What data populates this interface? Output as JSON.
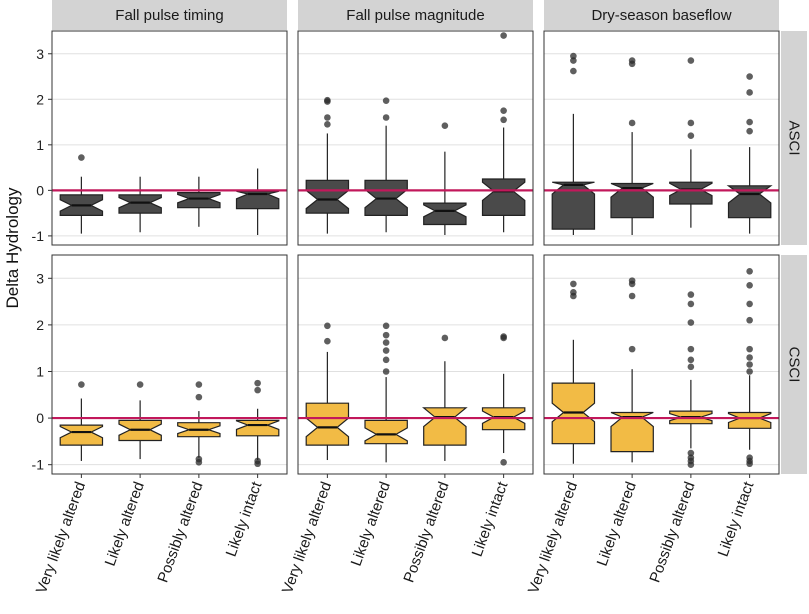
{
  "chart_data": {
    "type": "boxplot",
    "ylabel": "Delta Hydrology",
    "xlabel": "",
    "ylim": [
      -1.2,
      3.5
    ],
    "yticks": [
      -1,
      0,
      1,
      2,
      3
    ],
    "reference_line": 0,
    "columns": [
      "Fall pulse timing",
      "Fall pulse magnitude",
      "Dry-season baseflow"
    ],
    "rows": [
      "ASCI",
      "CSCI"
    ],
    "categories": [
      "Very likely altered",
      "Likely altered",
      "Possibly altered",
      "Likely intact"
    ],
    "colors": {
      "ASCI": "#4a4a4a",
      "CSCI": "#f2bb45",
      "reference_line": "#c2185b",
      "strip_bg": "#d3d3d3",
      "grid": "#e0e0e0"
    },
    "panels": [
      {
        "row": "ASCI",
        "column": "Fall pulse timing",
        "boxes": [
          {
            "category": "Very likely altered",
            "whisker_low": -0.95,
            "q1": -0.55,
            "median": -0.33,
            "q3": -0.1,
            "whisker_high": 0.3,
            "outliers": [
              0.72
            ]
          },
          {
            "category": "Likely altered",
            "whisker_low": -0.92,
            "q1": -0.5,
            "median": -0.27,
            "q3": -0.1,
            "whisker_high": 0.3,
            "outliers": []
          },
          {
            "category": "Possibly altered",
            "whisker_low": -0.8,
            "q1": -0.38,
            "median": -0.18,
            "q3": -0.05,
            "whisker_high": 0.3,
            "outliers": []
          },
          {
            "category": "Likely intact",
            "whisker_low": -0.98,
            "q1": -0.4,
            "median": -0.08,
            "q3": -0.02,
            "whisker_high": 0.48,
            "outliers": []
          }
        ]
      },
      {
        "row": "ASCI",
        "column": "Fall pulse magnitude",
        "boxes": [
          {
            "category": "Very likely altered",
            "whisker_low": -0.95,
            "q1": -0.5,
            "median": -0.2,
            "q3": 0.22,
            "whisker_high": 1.25,
            "outliers": [
              1.45,
              1.6,
              1.95,
              1.98
            ]
          },
          {
            "category": "Likely altered",
            "whisker_low": -0.92,
            "q1": -0.55,
            "median": -0.18,
            "q3": 0.22,
            "whisker_high": 1.42,
            "outliers": [
              1.6,
              1.97
            ]
          },
          {
            "category": "Possibly altered",
            "whisker_low": -0.98,
            "q1": -0.75,
            "median": -0.45,
            "q3": -0.28,
            "whisker_high": 0.85,
            "outliers": [
              1.42
            ]
          },
          {
            "category": "Likely intact",
            "whisker_low": -0.92,
            "q1": -0.55,
            "median": -0.02,
            "q3": 0.25,
            "whisker_high": 1.38,
            "outliers": [
              1.55,
              1.75,
              3.4
            ]
          }
        ]
      },
      {
        "row": "ASCI",
        "column": "Dry-season baseflow",
        "boxes": [
          {
            "category": "Very likely altered",
            "whisker_low": -0.98,
            "q1": -0.85,
            "median": 0.12,
            "q3": 0.18,
            "whisker_high": 1.68,
            "outliers": [
              2.62,
              2.85,
              2.95
            ]
          },
          {
            "category": "Likely altered",
            "whisker_low": -0.98,
            "q1": -0.6,
            "median": 0.05,
            "q3": 0.15,
            "whisker_high": 1.28,
            "outliers": [
              1.48,
              2.78,
              2.85
            ]
          },
          {
            "category": "Possibly altered",
            "whisker_low": -0.82,
            "q1": -0.3,
            "median": 0.02,
            "q3": 0.18,
            "whisker_high": 0.9,
            "outliers": [
              1.2,
              1.48,
              2.85
            ]
          },
          {
            "category": "Likely intact",
            "whisker_low": -0.95,
            "q1": -0.6,
            "median": -0.08,
            "q3": 0.1,
            "whisker_high": 0.95,
            "outliers": [
              1.3,
              1.5,
              2.15,
              2.5
            ]
          }
        ]
      },
      {
        "row": "CSCI",
        "column": "Fall pulse timing",
        "boxes": [
          {
            "category": "Very likely altered",
            "whisker_low": -0.92,
            "q1": -0.58,
            "median": -0.3,
            "q3": -0.15,
            "whisker_high": 0.42,
            "outliers": [
              0.72
            ]
          },
          {
            "category": "Likely altered",
            "whisker_low": -0.88,
            "q1": -0.48,
            "median": -0.25,
            "q3": -0.05,
            "whisker_high": 0.38,
            "outliers": [
              0.72
            ]
          },
          {
            "category": "Possibly altered",
            "whisker_low": -0.85,
            "q1": -0.4,
            "median": -0.25,
            "q3": -0.1,
            "whisker_high": 0.15,
            "outliers": [
              -0.95,
              -0.88,
              0.45,
              0.72
            ]
          },
          {
            "category": "Likely intact",
            "whisker_low": -0.9,
            "q1": -0.38,
            "median": -0.15,
            "q3": -0.05,
            "whisker_high": 0.2,
            "outliers": [
              -0.98,
              -0.92,
              0.6,
              0.75
            ]
          }
        ]
      },
      {
        "row": "CSCI",
        "column": "Fall pulse magnitude",
        "boxes": [
          {
            "category": "Very likely altered",
            "whisker_low": -0.9,
            "q1": -0.58,
            "median": -0.2,
            "q3": 0.32,
            "whisker_high": 1.42,
            "outliers": [
              1.65,
              1.98
            ]
          },
          {
            "category": "Likely altered",
            "whisker_low": -0.95,
            "q1": -0.55,
            "median": -0.35,
            "q3": -0.05,
            "whisker_high": 0.88,
            "outliers": [
              1.0,
              1.25,
              1.45,
              1.62,
              1.78,
              1.98
            ]
          },
          {
            "category": "Possibly altered",
            "whisker_low": -0.92,
            "q1": -0.58,
            "median": 0.02,
            "q3": 0.22,
            "whisker_high": 1.22,
            "outliers": [
              1.72
            ]
          },
          {
            "category": "Likely intact",
            "whisker_low": -0.75,
            "q1": -0.25,
            "median": 0.02,
            "q3": 0.22,
            "whisker_high": 0.95,
            "outliers": [
              -0.95,
              1.72,
              1.75
            ]
          }
        ]
      },
      {
        "row": "CSCI",
        "column": "Dry-season baseflow",
        "boxes": [
          {
            "category": "Very likely altered",
            "whisker_low": -0.98,
            "q1": -0.55,
            "median": 0.12,
            "q3": 0.75,
            "whisker_high": 1.68,
            "outliers": [
              2.62,
              2.7,
              2.88
            ]
          },
          {
            "category": "Likely altered",
            "whisker_low": -0.95,
            "q1": -0.72,
            "median": 0.02,
            "q3": 0.12,
            "whisker_high": 1.05,
            "outliers": [
              1.48,
              2.62,
              2.88,
              2.95
            ]
          },
          {
            "category": "Possibly altered",
            "whisker_low": -0.65,
            "q1": -0.12,
            "median": 0.02,
            "q3": 0.15,
            "whisker_high": 0.82,
            "outliers": [
              -1.0,
              -0.92,
              -0.85,
              -0.75,
              1.1,
              1.25,
              1.48,
              2.05,
              2.45,
              2.65
            ]
          },
          {
            "category": "Likely intact",
            "whisker_low": -0.68,
            "q1": -0.22,
            "median": 0.0,
            "q3": 0.12,
            "whisker_high": 0.92,
            "outliers": [
              -0.98,
              -0.92,
              -0.85,
              1.0,
              1.15,
              1.3,
              1.48,
              2.1,
              2.45,
              2.85,
              3.15
            ]
          }
        ]
      }
    ]
  }
}
